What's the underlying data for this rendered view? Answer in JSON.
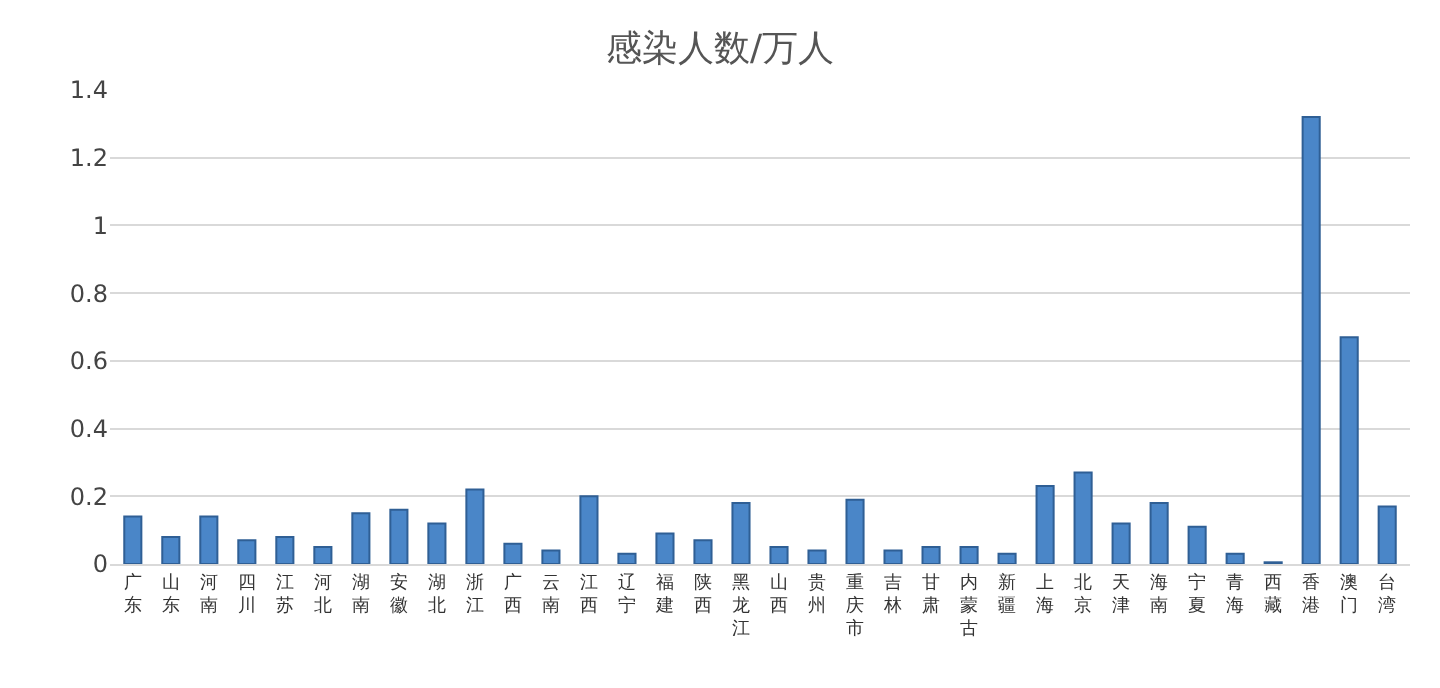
{
  "chart_data": {
    "type": "bar",
    "title": "感染人数/万人",
    "categories": [
      "广东",
      "山东",
      "河南",
      "四川",
      "江苏",
      "河北",
      "湖南",
      "安徽",
      "湖北",
      "浙江",
      "广西",
      "云南",
      "江西",
      "辽宁",
      "福建",
      "陕西",
      "黑龙江",
      "山西",
      "贵州",
      "重庆市",
      "吉林",
      "甘肃",
      "内蒙古",
      "新疆",
      "上海",
      "北京",
      "天津",
      "海南",
      "宁夏",
      "青海",
      "西藏",
      "香港",
      "澳门",
      "台湾"
    ],
    "values": [
      0.14,
      0.08,
      0.14,
      0.07,
      0.08,
      0.05,
      0.15,
      0.16,
      0.12,
      0.22,
      0.06,
      0.04,
      0.2,
      0.03,
      0.09,
      0.07,
      0.18,
      0.05,
      0.04,
      0.19,
      0.04,
      0.05,
      0.05,
      0.03,
      0.23,
      0.27,
      0.12,
      0.18,
      0.11,
      0.03,
      0.005,
      1.32,
      0.67,
      0.17
    ],
    "color": "#4a86c8",
    "ylim": [
      0,
      1.4
    ],
    "yticks": [
      0,
      0.2,
      0.4,
      0.6,
      0.8,
      1,
      1.2,
      1.4
    ],
    "grid": "y"
  }
}
